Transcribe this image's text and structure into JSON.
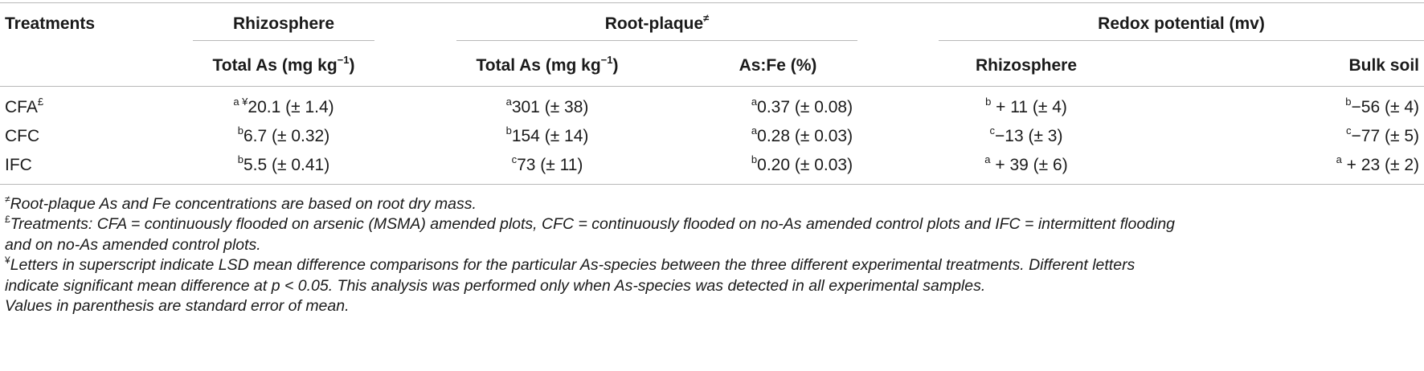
{
  "table": {
    "headers": {
      "treatments": "Treatments",
      "rhizosphere_group": "Rhizosphere",
      "root_plaque_group": "Root-plaque",
      "root_plaque_mark": "≠",
      "redox_group": "Redox potential (mv)",
      "rhizo_total_as": "Total As (mg kg",
      "plaque_total_as": "Total As (mg kg",
      "unit_exp": "−1",
      "unit_close": ")",
      "as_fe": "As:Fe (%)",
      "redox_rhizosphere": "Rhizosphere",
      "redox_bulk": "Bulk soil"
    },
    "rows": [
      {
        "treatment": "CFA",
        "treatment_mark": "£",
        "rhizo_sup": "a ¥",
        "rhizo_val": "20.1 (± 1.4)",
        "plaque_sup": "a",
        "plaque_val": "301 (± 38)",
        "asfe_sup": "a",
        "asfe_val": "0.37 (± 0.08)",
        "redox_rhizo_sup": "b",
        "redox_rhizo_val": " + 11 (± 4)",
        "redox_bulk_sup": "b",
        "redox_bulk_val": "−56 (± 4)"
      },
      {
        "treatment": "CFC",
        "treatment_mark": "",
        "rhizo_sup": "b",
        "rhizo_val": "6.7 (± 0.32)",
        "plaque_sup": "b",
        "plaque_val": "154 (± 14)",
        "asfe_sup": "a",
        "asfe_val": "0.28 (± 0.03)",
        "redox_rhizo_sup": "c",
        "redox_rhizo_val": "−13 (± 3)",
        "redox_bulk_sup": "c",
        "redox_bulk_val": "−77 (± 5)"
      },
      {
        "treatment": "IFC",
        "treatment_mark": "",
        "rhizo_sup": "b",
        "rhizo_val": "5.5 (± 0.41)",
        "plaque_sup": "c",
        "plaque_val": "73 (± 11)",
        "asfe_sup": "b",
        "asfe_val": "0.20 (± 0.03)",
        "redox_rhizo_sup": "a",
        "redox_rhizo_val": " + 39 (± 6)",
        "redox_bulk_sup": "a",
        "redox_bulk_val": " + 23 (± 2)"
      }
    ]
  },
  "footnotes": {
    "n1_mark": "≠",
    "n1_text": "Root-plaque As and Fe concentrations are based on root dry mass.",
    "n2_mark": "£",
    "n2_line1": "Treatments: CFA = continuously flooded on arsenic (MSMA) amended plots, CFC = continuously flooded on no-As amended control plots and IFC = intermittent flooding",
    "n2_line2": "and on no-As amended control plots.",
    "n3_mark": "¥",
    "n3_line1": "Letters in superscript indicate LSD mean difference comparisons for the particular As-species between the three different experimental treatments. Different letters",
    "n3_line2": "indicate significant mean difference at p < 0.05. This analysis was performed only when As-species was detected in all experimental samples.",
    "n4_text": "Values in parenthesis are standard error of mean."
  }
}
